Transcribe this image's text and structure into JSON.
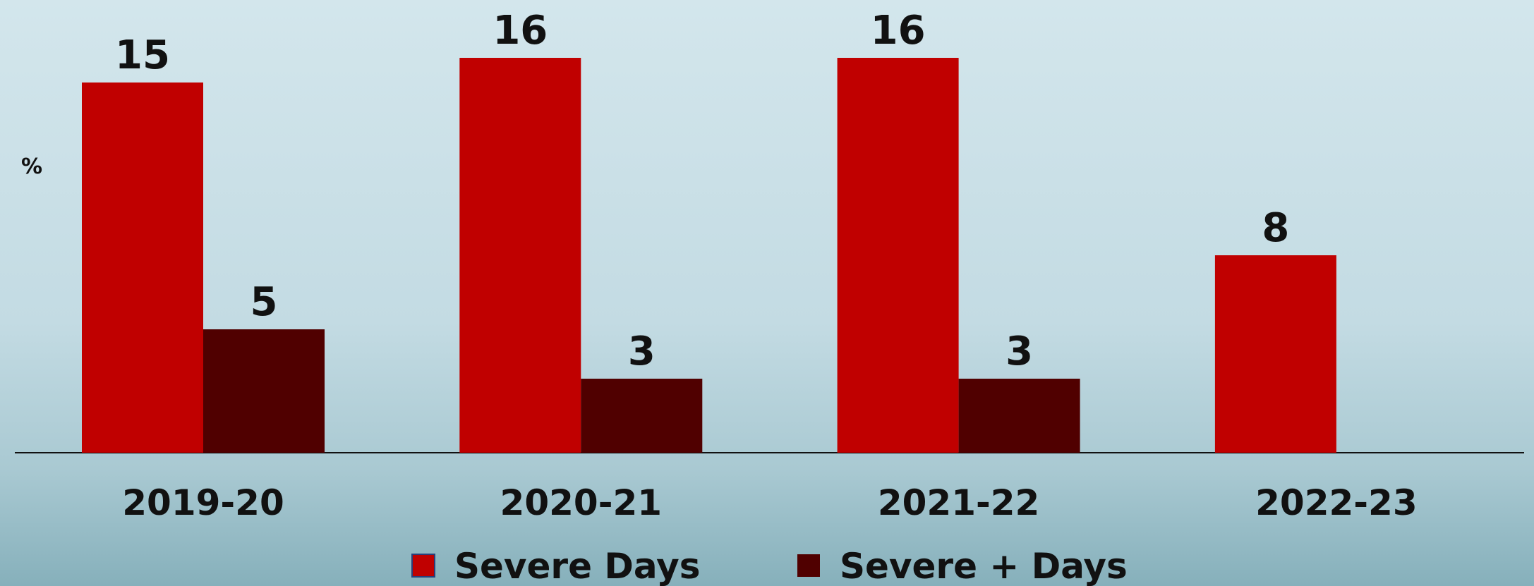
{
  "chart_data": {
    "type": "bar",
    "y_label": "%",
    "categories": [
      "2019-20",
      "2020-21",
      "2021-22",
      "2022-23"
    ],
    "series": [
      {
        "name": "Severe Days",
        "color": "#c00000",
        "values": [
          15,
          16,
          16,
          8
        ]
      },
      {
        "name": "Severe + Days",
        "color": "#500000",
        "values": [
          5,
          3,
          3,
          null
        ]
      }
    ]
  }
}
